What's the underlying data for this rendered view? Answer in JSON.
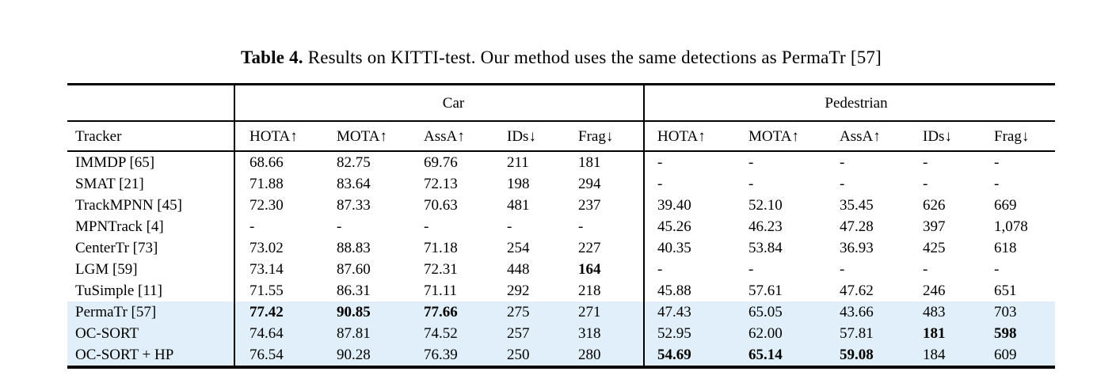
{
  "caption": {
    "label": "Table 4.",
    "text": " Results on KITTI-test. Our method uses the same detections as PermaTr [57]"
  },
  "table": {
    "highlight_color": "#e1effa",
    "groups": [
      {
        "label": "Car"
      },
      {
        "label": "Pedestrian"
      }
    ],
    "columns": [
      "Tracker",
      "HOTA↑",
      "MOTA↑",
      "AssA↑",
      "IDs↓",
      "Frag↓",
      "HOTA↑",
      "MOTA↑",
      "AssA↑",
      "IDs↓",
      "Frag↓"
    ],
    "rows": [
      {
        "cells": [
          "IMMDP [65]",
          "68.66",
          "82.75",
          "69.76",
          "211",
          "181",
          "-",
          "-",
          "-",
          "-",
          "-"
        ],
        "bold": [],
        "highlight": false
      },
      {
        "cells": [
          "SMAT [21]",
          "71.88",
          "83.64",
          "72.13",
          "198",
          "294",
          "-",
          "-",
          "-",
          "-",
          "-"
        ],
        "bold": [],
        "highlight": false
      },
      {
        "cells": [
          "TrackMPNN [45]",
          "72.30",
          "87.33",
          "70.63",
          "481",
          "237",
          "39.40",
          "52.10",
          "35.45",
          "626",
          "669"
        ],
        "bold": [],
        "highlight": false
      },
      {
        "cells": [
          "MPNTrack [4]",
          "-",
          "-",
          "-",
          "-",
          "-",
          "45.26",
          "46.23",
          "47.28",
          "397",
          "1,078"
        ],
        "bold": [],
        "highlight": false
      },
      {
        "cells": [
          "CenterTr [73]",
          "73.02",
          "88.83",
          "71.18",
          "254",
          "227",
          "40.35",
          "53.84",
          "36.93",
          "425",
          "618"
        ],
        "bold": [],
        "highlight": false
      },
      {
        "cells": [
          "LGM [59]",
          "73.14",
          "87.60",
          "72.31",
          "448",
          "164",
          "-",
          "-",
          "-",
          "-",
          "-"
        ],
        "bold": [
          5
        ],
        "highlight": false
      },
      {
        "cells": [
          "TuSimple [11]",
          "71.55",
          "86.31",
          "71.11",
          "292",
          "218",
          "45.88",
          "57.61",
          "47.62",
          "246",
          "651"
        ],
        "bold": [],
        "highlight": false
      },
      {
        "cells": [
          "PermaTr [57]",
          "77.42",
          "90.85",
          "77.66",
          "275",
          "271",
          "47.43",
          "65.05",
          "43.66",
          "483",
          "703"
        ],
        "bold": [
          1,
          2,
          3
        ],
        "highlight": true
      },
      {
        "cells": [
          "OC-SORT",
          "74.64",
          "87.81",
          "74.52",
          "257",
          "318",
          "52.95",
          "62.00",
          "57.81",
          "181",
          "598"
        ],
        "bold": [
          9,
          10
        ],
        "highlight": true
      },
      {
        "cells": [
          "OC-SORT + HP",
          "76.54",
          "90.28",
          "76.39",
          "250",
          "280",
          "54.69",
          "65.14",
          "59.08",
          "184",
          "609"
        ],
        "bold": [
          6,
          7,
          8
        ],
        "highlight": true
      }
    ]
  }
}
